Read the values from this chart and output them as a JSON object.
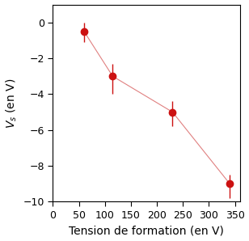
{
  "x": [
    60,
    115,
    230,
    340
  ],
  "y": [
    -0.5,
    -3.0,
    -5.0,
    -9.0
  ],
  "yerr_upper": [
    0.5,
    0.7,
    0.6,
    0.5
  ],
  "yerr_lower": [
    0.6,
    1.0,
    0.8,
    0.8
  ],
  "line_color": "#e08080",
  "marker_color": "#cc1111",
  "marker_size": 6,
  "xlabel": "Tension de formation (en V)",
  "ylabel": "$V_s$ (en V)",
  "xlim": [
    0,
    360
  ],
  "ylim": [
    -10,
    1
  ],
  "xticks": [
    0,
    50,
    100,
    150,
    200,
    250,
    300,
    350
  ],
  "yticks": [
    0,
    -2,
    -4,
    -6,
    -8,
    -10
  ],
  "xlabel_fontsize": 10,
  "ylabel_fontsize": 10,
  "tick_fontsize": 9,
  "background_color": "#ffffff"
}
